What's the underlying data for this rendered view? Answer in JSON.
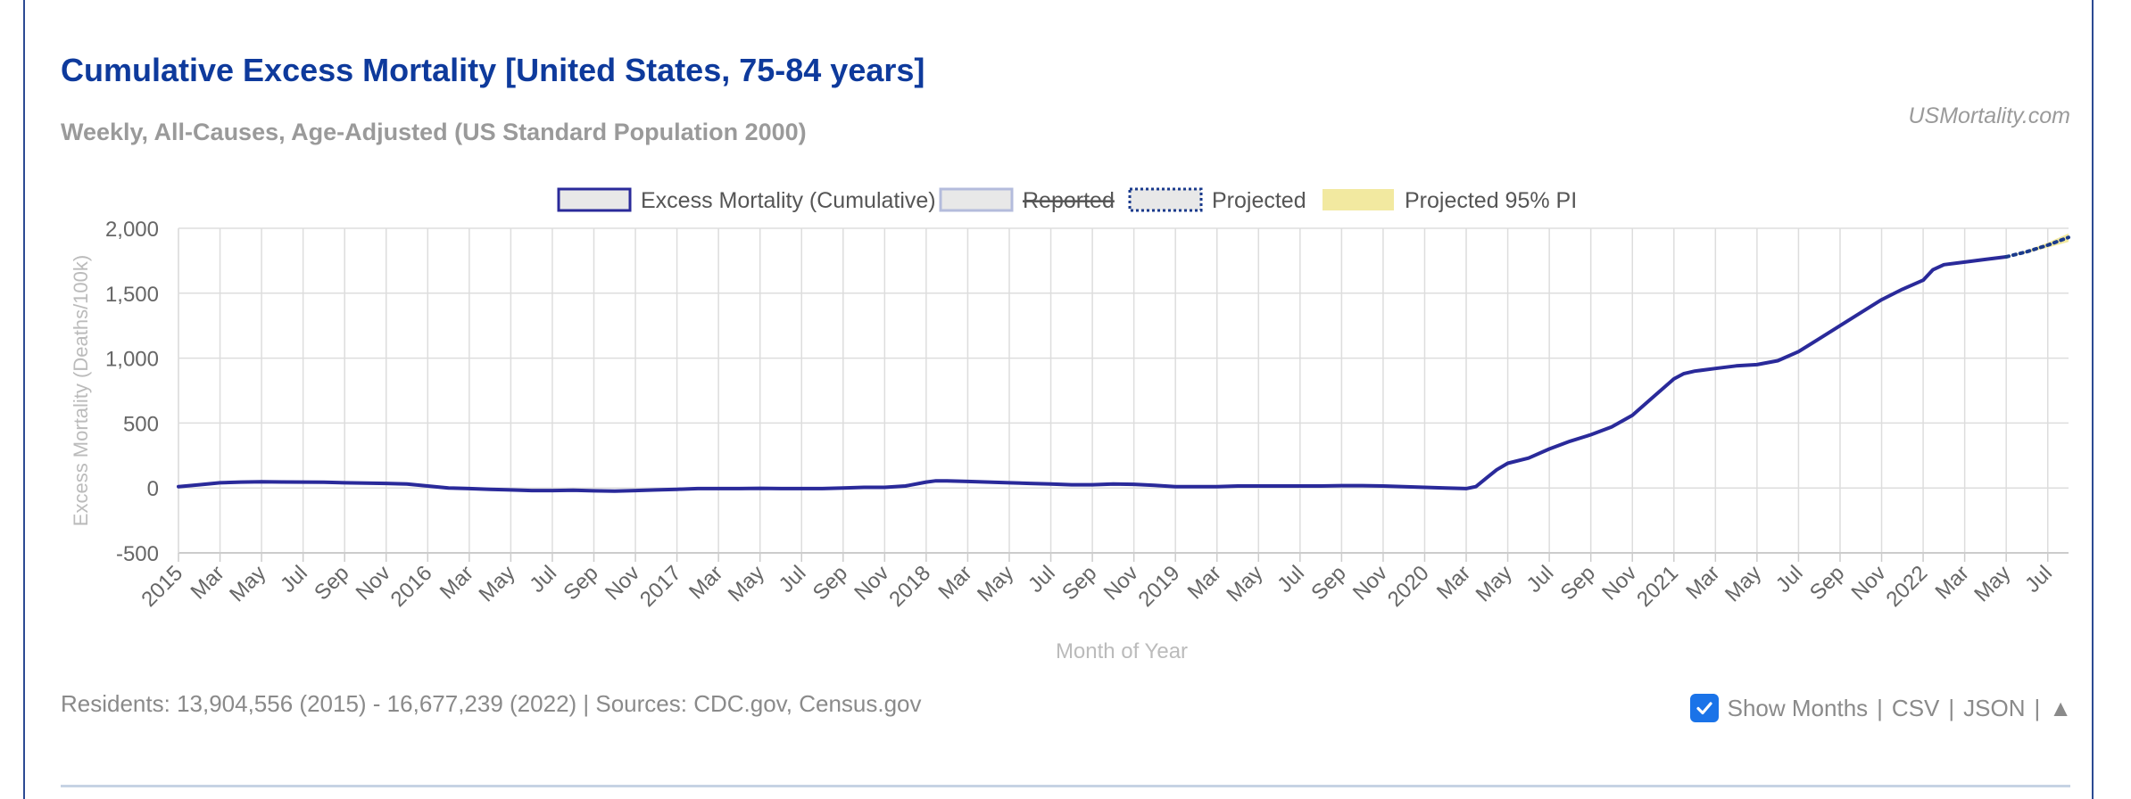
{
  "header": {
    "title": "Cumulative Excess Mortality [United States, 75-84 years]",
    "subtitle": "Weekly, All-Causes, Age-Adjusted (US Standard Population 2000)",
    "brand": "USMortality.com"
  },
  "footer": {
    "residents": "Residents: 13,904,556 (2015) - 16,677,239 (2022) | Sources: CDC.gov, Census.gov",
    "show_months_label": "Show Months",
    "sep": "|",
    "csv_label": "CSV",
    "json_label": "JSON",
    "up_label": "▲",
    "show_months_checked": true
  },
  "colors": {
    "series": "#2a2a9a",
    "reported": "#b4bcdc",
    "projected": "#1a3a8c",
    "pi_fill": "#f2e9a0",
    "grid": "#dddddd",
    "tick_text": "#666666",
    "axis_title": "#bbbbbb"
  },
  "chart_data": {
    "type": "line",
    "xlabel": "Month of Year",
    "ylabel": "Excess Mortality (Deaths/100k)",
    "ylim": [
      -500,
      2000
    ],
    "yticks": [
      2000,
      1500,
      1000,
      500,
      0,
      -500
    ],
    "ytick_labels": [
      "2,000",
      "1,500",
      "1,000",
      "500",
      "0",
      "-500"
    ],
    "grid": true,
    "legend_position": "top",
    "legend": [
      {
        "label": "Excess Mortality (Cumulative)",
        "style": "solid",
        "hidden": false
      },
      {
        "label": "Reported",
        "style": "solid-light",
        "hidden": true
      },
      {
        "label": "Projected",
        "style": "dotted",
        "hidden": false
      },
      {
        "label": "Projected 95% PI",
        "style": "fill",
        "hidden": false
      }
    ],
    "x_labels": [
      "2015",
      "Mar",
      "May",
      "Jul",
      "Sep",
      "Nov",
      "2016",
      "Mar",
      "May",
      "Jul",
      "Sep",
      "Nov",
      "2017",
      "Mar",
      "May",
      "Jul",
      "Sep",
      "Nov",
      "2018",
      "Mar",
      "May",
      "Jul",
      "Sep",
      "Nov",
      "2019",
      "Mar",
      "May",
      "Jul",
      "Sep",
      "Nov",
      "2020",
      "Mar",
      "May",
      "Jul",
      "Sep",
      "Nov",
      "2021",
      "Mar",
      "May",
      "Jul",
      "Sep",
      "Nov",
      "2022",
      "Mar",
      "May",
      "Jul"
    ],
    "series": [
      {
        "name": "Excess Mortality (Cumulative)",
        "x": [
          "2015-01",
          "2015-02",
          "2015-03",
          "2015-04",
          "2015-05",
          "2015-06",
          "2015-07",
          "2015-08",
          "2015-09",
          "2015-10",
          "2015-11",
          "2015-12",
          "2016-01",
          "2016-02",
          "2016-03",
          "2016-04",
          "2016-05",
          "2016-06",
          "2016-07",
          "2016-08",
          "2016-09",
          "2016-10",
          "2016-11",
          "2016-12",
          "2017-01",
          "2017-02",
          "2017-03",
          "2017-04",
          "2017-05",
          "2017-06",
          "2017-07",
          "2017-08",
          "2017-09",
          "2017-10",
          "2017-11",
          "2017-12",
          "2018-01",
          "2018-01-15",
          "2018-02",
          "2018-03",
          "2018-04",
          "2018-05",
          "2018-06",
          "2018-07",
          "2018-08",
          "2018-09",
          "2018-10",
          "2018-11",
          "2018-12",
          "2019-01",
          "2019-02",
          "2019-03",
          "2019-04",
          "2019-05",
          "2019-06",
          "2019-07",
          "2019-08",
          "2019-09",
          "2019-10",
          "2019-11",
          "2019-12",
          "2020-01",
          "2020-02",
          "2020-03",
          "2020-03-15",
          "2020-04",
          "2020-04-15",
          "2020-05",
          "2020-06",
          "2020-07",
          "2020-08",
          "2020-09",
          "2020-10",
          "2020-11",
          "2020-12",
          "2021-01",
          "2021-01-15",
          "2021-02",
          "2021-03",
          "2021-04",
          "2021-05",
          "2021-06",
          "2021-07",
          "2021-08",
          "2021-09",
          "2021-10",
          "2021-11",
          "2021-12",
          "2022-01",
          "2022-01-15",
          "2022-02",
          "2022-03",
          "2022-04",
          "2022-05"
        ],
        "y": [
          10,
          25,
          40,
          45,
          48,
          46,
          45,
          44,
          40,
          38,
          35,
          30,
          15,
          0,
          -5,
          -10,
          -15,
          -20,
          -20,
          -18,
          -22,
          -25,
          -20,
          -15,
          -10,
          -5,
          -5,
          -5,
          -3,
          -5,
          -5,
          -5,
          0,
          5,
          5,
          15,
          45,
          55,
          55,
          50,
          45,
          40,
          35,
          30,
          25,
          25,
          30,
          28,
          20,
          10,
          10,
          10,
          15,
          15,
          15,
          15,
          15,
          18,
          18,
          15,
          10,
          5,
          0,
          -5,
          10,
          80,
          140,
          190,
          230,
          300,
          360,
          410,
          470,
          560,
          700,
          840,
          880,
          900,
          920,
          940,
          950,
          980,
          1050,
          1150,
          1250,
          1350,
          1450,
          1530,
          1600,
          1680,
          1720,
          1740,
          1760,
          1780
        ]
      },
      {
        "name": "Projected",
        "x": [
          "2022-05",
          "2022-06",
          "2022-07",
          "2022-08"
        ],
        "y": [
          1780,
          1820,
          1870,
          1930
        ]
      }
    ],
    "pi_band": {
      "x": [
        "2022-05",
        "2022-06",
        "2022-07",
        "2022-08"
      ],
      "lower": [
        1780,
        1810,
        1850,
        1895
      ],
      "upper": [
        1780,
        1830,
        1890,
        1960
      ]
    },
    "x_domain": [
      "2015-01",
      "2022-08"
    ]
  }
}
